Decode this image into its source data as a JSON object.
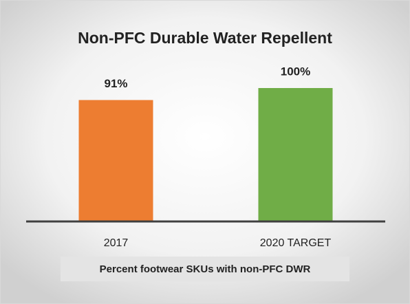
{
  "chart_data": {
    "type": "bar",
    "title": "Non-PFC Durable Water Repellent",
    "x_label": "Percent footwear SKUs with non-PFC DWR",
    "categories": [
      "2017",
      "2020 TARGET"
    ],
    "values": [
      91,
      100
    ],
    "value_labels": [
      "91%",
      "100%"
    ],
    "colors": [
      "#ed7d31",
      "#70ad47"
    ]
  }
}
